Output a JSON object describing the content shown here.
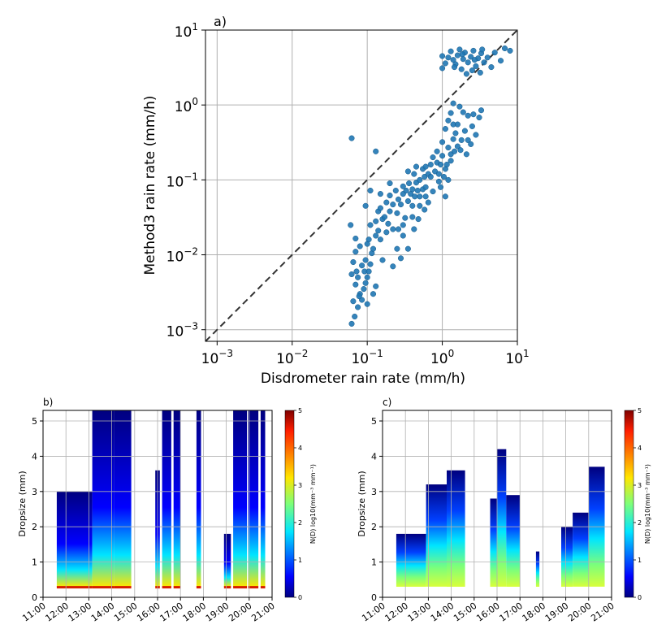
{
  "chart_data": [
    {
      "panel": "a)",
      "type": "scatter",
      "xlabel": "Disdrometer rain rate (mm/h)",
      "ylabel": "Method3 rain rate (mm/h)",
      "xscale": "log",
      "yscale": "log",
      "xlim": [
        0.0007,
        10
      ],
      "ylim": [
        0.0007,
        10
      ],
      "grid": true,
      "reference_line": {
        "style": "dashed",
        "color": "#333333",
        "equation": "y = x"
      },
      "point_color": "#1f77b4",
      "x_ticks": [
        {
          "base": "10",
          "exp": "−3",
          "value": 0.001
        },
        {
          "base": "10",
          "exp": "−2",
          "value": 0.01
        },
        {
          "base": "10",
          "exp": "−1",
          "value": 0.1
        },
        {
          "base": "10",
          "exp": "0",
          "value": 1
        },
        {
          "base": "10",
          "exp": "1",
          "value": 10
        }
      ],
      "y_ticks": [
        {
          "base": "10",
          "exp": "−3",
          "value": 0.001
        },
        {
          "base": "10",
          "exp": "−2",
          "value": 0.01
        },
        {
          "base": "10",
          "exp": "−1",
          "value": 0.1
        },
        {
          "base": "10",
          "exp": "0",
          "value": 1
        },
        {
          "base": "10",
          "exp": "1",
          "value": 10
        }
      ],
      "points": [
        [
          0.062,
          0.36
        ],
        [
          0.06,
          0.025
        ],
        [
          0.07,
          0.0165
        ],
        [
          0.065,
          0.008
        ],
        [
          0.072,
          0.006
        ],
        [
          0.07,
          0.004
        ],
        [
          0.08,
          0.003
        ],
        [
          0.085,
          0.0025
        ],
        [
          0.062,
          0.0012
        ],
        [
          0.068,
          0.0015
        ],
        [
          0.075,
          0.002
        ],
        [
          0.065,
          0.0024
        ],
        [
          0.078,
          0.0028
        ],
        [
          0.09,
          0.0035
        ],
        [
          0.075,
          0.005
        ],
        [
          0.062,
          0.0055
        ],
        [
          0.07,
          0.011
        ],
        [
          0.08,
          0.013
        ],
        [
          0.085,
          0.0072
        ],
        [
          0.095,
          0.0085
        ],
        [
          0.092,
          0.006
        ],
        [
          0.1,
          0.005
        ],
        [
          0.105,
          0.006
        ],
        [
          0.095,
          0.0042
        ],
        [
          0.1,
          0.0022
        ],
        [
          0.12,
          0.003
        ],
        [
          0.13,
          0.0038
        ],
        [
          0.11,
          0.0075
        ],
        [
          0.1,
          0.014
        ],
        [
          0.11,
          0.025
        ],
        [
          0.095,
          0.045
        ],
        [
          0.11,
          0.072
        ],
        [
          0.105,
          0.016
        ],
        [
          0.115,
          0.0105
        ],
        [
          0.12,
          0.012
        ],
        [
          0.13,
          0.018
        ],
        [
          0.14,
          0.021
        ],
        [
          0.15,
          0.016
        ],
        [
          0.16,
          0.0085
        ],
        [
          0.13,
          0.028
        ],
        [
          0.14,
          0.038
        ],
        [
          0.15,
          0.042
        ],
        [
          0.16,
          0.03
        ],
        [
          0.18,
          0.02
        ],
        [
          0.17,
          0.032
        ],
        [
          0.19,
          0.026
        ],
        [
          0.18,
          0.05
        ],
        [
          0.2,
          0.038
        ],
        [
          0.22,
          0.022
        ],
        [
          0.15,
          0.065
        ],
        [
          0.2,
          0.062
        ],
        [
          0.2,
          0.09
        ],
        [
          0.22,
          0.047
        ],
        [
          0.24,
          0.072
        ],
        [
          0.25,
          0.036
        ],
        [
          0.26,
          0.022
        ],
        [
          0.13,
          0.24
        ],
        [
          0.26,
          0.055
        ],
        [
          0.28,
          0.047
        ],
        [
          0.3,
          0.065
        ],
        [
          0.3,
          0.082
        ],
        [
          0.32,
          0.031
        ],
        [
          0.35,
          0.052
        ],
        [
          0.33,
          0.072
        ],
        [
          0.36,
          0.09
        ],
        [
          0.38,
          0.065
        ],
        [
          0.4,
          0.045
        ],
        [
          0.4,
          0.075
        ],
        [
          0.43,
          0.06
        ],
        [
          0.45,
          0.092
        ],
        [
          0.42,
          0.12
        ],
        [
          0.47,
          0.072
        ],
        [
          0.5,
          0.045
        ],
        [
          0.5,
          0.1
        ],
        [
          0.55,
          0.075
        ],
        [
          0.58,
          0.11
        ],
        [
          0.6,
          0.08
        ],
        [
          0.35,
          0.13
        ],
        [
          0.45,
          0.15
        ],
        [
          0.55,
          0.14
        ],
        [
          0.6,
          0.15
        ],
        [
          0.65,
          0.12
        ],
        [
          0.7,
          0.16
        ],
        [
          0.8,
          0.13
        ],
        [
          0.85,
          0.17
        ],
        [
          0.9,
          0.12
        ],
        [
          0.75,
          0.2
        ],
        [
          0.85,
          0.24
        ],
        [
          0.95,
          0.16
        ],
        [
          1.0,
          0.21
        ],
        [
          1.1,
          0.14
        ],
        [
          1.2,
          0.1
        ],
        [
          1.0,
          0.32
        ],
        [
          1.2,
          0.27
        ],
        [
          1.3,
          0.22
        ],
        [
          1.4,
          0.35
        ],
        [
          1.5,
          0.42
        ],
        [
          1.1,
          0.48
        ],
        [
          1.2,
          0.62
        ],
        [
          1.3,
          0.78
        ],
        [
          1.4,
          0.55
        ],
        [
          1.6,
          0.55
        ],
        [
          1.8,
          0.34
        ],
        [
          2.0,
          0.45
        ],
        [
          2.2,
          0.34
        ],
        [
          2.5,
          0.52
        ],
        [
          1.7,
          0.95
        ],
        [
          1.9,
          0.8
        ],
        [
          1.4,
          1.05
        ],
        [
          2.2,
          0.72
        ],
        [
          2.6,
          0.75
        ],
        [
          3.1,
          0.68
        ],
        [
          2.8,
          0.4
        ],
        [
          3.3,
          0.85
        ],
        [
          2.4,
          0.3
        ],
        [
          1.1,
          0.06
        ],
        [
          0.9,
          0.095
        ],
        [
          0.7,
          0.11
        ],
        [
          0.6,
          0.06
        ],
        [
          0.5,
          0.06
        ],
        [
          0.4,
          0.032
        ],
        [
          0.3,
          0.025
        ],
        [
          0.25,
          0.012
        ],
        [
          0.22,
          0.007
        ],
        [
          0.28,
          0.009
        ],
        [
          0.35,
          0.012
        ],
        [
          0.3,
          0.018
        ],
        [
          0.42,
          0.022
        ],
        [
          0.48,
          0.03
        ],
        [
          0.58,
          0.04
        ],
        [
          0.65,
          0.05
        ],
        [
          0.75,
          0.07
        ],
        [
          0.95,
          0.08
        ],
        [
          1.05,
          0.11
        ],
        [
          1.15,
          0.16
        ],
        [
          1.3,
          0.18
        ],
        [
          1.45,
          0.24
        ],
        [
          1.6,
          0.28
        ],
        [
          1.75,
          0.25
        ],
        [
          2.1,
          0.22
        ],
        [
          1.0,
          3.1
        ],
        [
          1.0,
          4.5
        ],
        [
          1.1,
          3.6
        ],
        [
          1.2,
          4.3
        ],
        [
          1.3,
          5.2
        ],
        [
          1.4,
          4.0
        ],
        [
          1.5,
          3.5
        ],
        [
          1.6,
          4.6
        ],
        [
          1.7,
          5.5
        ],
        [
          1.8,
          3.0
        ],
        [
          1.9,
          4.1
        ],
        [
          2.0,
          5.0
        ],
        [
          2.2,
          3.7
        ],
        [
          2.4,
          4.4
        ],
        [
          2.6,
          5.3
        ],
        [
          2.8,
          3.3
        ],
        [
          3.0,
          4.2
        ],
        [
          3.3,
          4.9
        ],
        [
          3.6,
          3.7
        ],
        [
          4.0,
          4.3
        ],
        [
          2.1,
          2.6
        ],
        [
          2.5,
          2.9
        ],
        [
          3.2,
          2.7
        ],
        [
          4.5,
          3.2
        ],
        [
          5.0,
          5.0
        ],
        [
          6.0,
          3.9
        ],
        [
          6.8,
          5.7
        ],
        [
          8.0,
          5.3
        ],
        [
          1.45,
          3.2
        ],
        [
          2.7,
          4.0
        ],
        [
          1.85,
          4.75
        ],
        [
          3.4,
          5.5
        ]
      ]
    },
    {
      "panel": "b)",
      "type": "heatmap",
      "ylabel": "Dropsize (mm)",
      "ylim": [
        0,
        5.3
      ],
      "y_ticks": [
        "0",
        "1",
        "2",
        "3",
        "4",
        "5"
      ],
      "x_ticks": [
        "11:00",
        "12:00",
        "13:00",
        "14:00",
        "15:00",
        "16:00",
        "17:00",
        "18:00",
        "19:00",
        "20:00",
        "21:00"
      ],
      "time_range_hours": [
        11,
        21
      ],
      "colorbar": {
        "label": "N(D) log10(mm⁻³ mm⁻¹)",
        "ticks": [
          "0",
          "1",
          "2",
          "3",
          "4",
          "5"
        ],
        "range": [
          0,
          5
        ]
      },
      "grid": true,
      "rain_intervals_hours": [
        [
          11.6,
          13.15
        ],
        [
          13.15,
          14.1
        ],
        [
          14.1,
          14.85
        ],
        [
          15.9,
          16.1
        ],
        [
          16.2,
          16.6
        ],
        [
          16.7,
          17.0
        ],
        [
          17.7,
          17.9
        ],
        [
          18.9,
          19.2
        ],
        [
          19.3,
          19.9
        ],
        [
          19.95,
          20.4
        ],
        [
          20.5,
          20.7
        ]
      ],
      "max_dropsize_mm": [
        3.0,
        5.3,
        5.3,
        3.6,
        5.3,
        5.3,
        5.3,
        1.8,
        5.3,
        5.3,
        5.3
      ]
    },
    {
      "panel": "c)",
      "type": "heatmap",
      "ylabel": "Dropsize (mm)",
      "ylim": [
        0,
        5.3
      ],
      "y_ticks": [
        "0",
        "1",
        "2",
        "3",
        "4",
        "5"
      ],
      "x_ticks": [
        "11:00",
        "12:00",
        "13:00",
        "14:00",
        "15:00",
        "16:00",
        "17:00",
        "18:00",
        "19:00",
        "20:00",
        "21:00"
      ],
      "time_range_hours": [
        11,
        21
      ],
      "colorbar": {
        "label": "N(D) log10(mm⁻³ mm⁻¹)",
        "ticks": [
          "0",
          "1",
          "2",
          "3",
          "4",
          "5"
        ],
        "range": [
          0,
          5
        ]
      },
      "grid": true,
      "rain_intervals_hours": [
        [
          11.6,
          12.9
        ],
        [
          12.9,
          13.8
        ],
        [
          13.8,
          14.6
        ],
        [
          15.7,
          16.0
        ],
        [
          16.0,
          16.4
        ],
        [
          16.4,
          17.0
        ],
        [
          17.7,
          17.85
        ],
        [
          18.8,
          19.3
        ],
        [
          19.3,
          20.0
        ],
        [
          20.0,
          20.7
        ]
      ],
      "max_dropsize_mm": [
        1.8,
        3.2,
        3.6,
        2.8,
        4.2,
        2.9,
        1.3,
        2.0,
        2.4,
        3.7
      ]
    }
  ]
}
